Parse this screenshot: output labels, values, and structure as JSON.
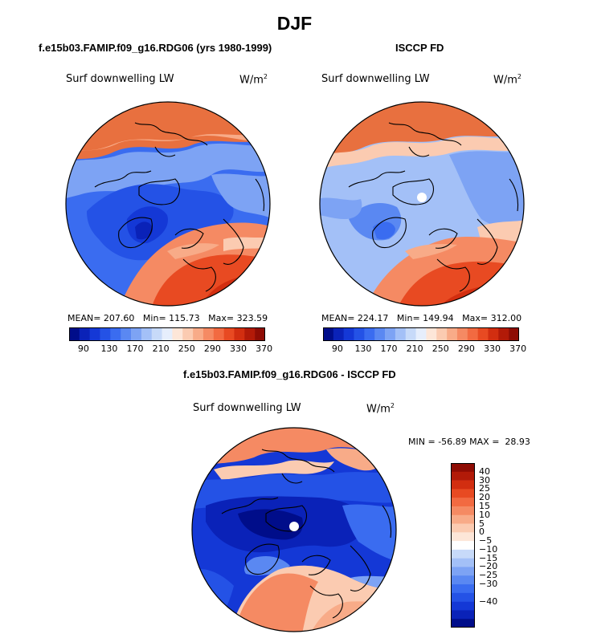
{
  "title": "DJF",
  "panels": {
    "model": {
      "title": "f.e15b03.FAMIP.f09_g16.RDG06 (yrs 1980-1999)",
      "variable": "Surf downwelling LW",
      "units": "W/m",
      "units_sup": "2",
      "stats": {
        "mean": "207.60",
        "min": "115.73",
        "max": "323.59"
      }
    },
    "obs": {
      "title": "ISCCP FD",
      "variable": "Surf downwelling LW",
      "units": "W/m",
      "units_sup": "2",
      "stats": {
        "mean": "224.17",
        "min": "149.94",
        "max": "312.00"
      }
    },
    "diff": {
      "title": "f.e15b03.FAMIP.f09_g16.RDG06 - ISCCP FD",
      "variable": "Surf downwelling LW",
      "units": "W/m",
      "units_sup": "2",
      "stats": {
        "min": "-56.89",
        "max": "28.93"
      }
    }
  },
  "labels": {
    "mean": "MEAN=",
    "min": "Min=",
    "max": "Max=",
    "min_upper": "MIN =",
    "max_upper": "MAX ="
  },
  "colorbar_abs": {
    "ticks": [
      "90",
      "130",
      "170",
      "210",
      "250",
      "290",
      "330",
      "370"
    ],
    "colors": [
      "#000d8a",
      "#0a22b8",
      "#1438d6",
      "#2452e6",
      "#3a6cf0",
      "#5a88f2",
      "#7da3f4",
      "#a3c0f7",
      "#c7daf9",
      "#e6eefc",
      "#fde6d8",
      "#fbcbb1",
      "#f8ab88",
      "#f58a63",
      "#f26a41",
      "#e84a22",
      "#d22e10",
      "#b21a08",
      "#8e0c04"
    ]
  },
  "colorbar_diff": {
    "labels": [
      "40",
      "30",
      "25",
      "20",
      "15",
      "10",
      "5",
      "0",
      "−5",
      "−10",
      "−15",
      "−20",
      "−25",
      "−30",
      "−40"
    ],
    "colors": [
      "#8e0c04",
      "#b21a08",
      "#d22e10",
      "#e84a22",
      "#f26a41",
      "#f58a63",
      "#f8ab88",
      "#fbcbb1",
      "#fde6d8",
      "#ffffff",
      "#c7daf9",
      "#a3c0f7",
      "#7da3f4",
      "#5a88f2",
      "#3a6cf0",
      "#2452e6",
      "#1438d6",
      "#0a22b8",
      "#000d8a"
    ]
  }
}
